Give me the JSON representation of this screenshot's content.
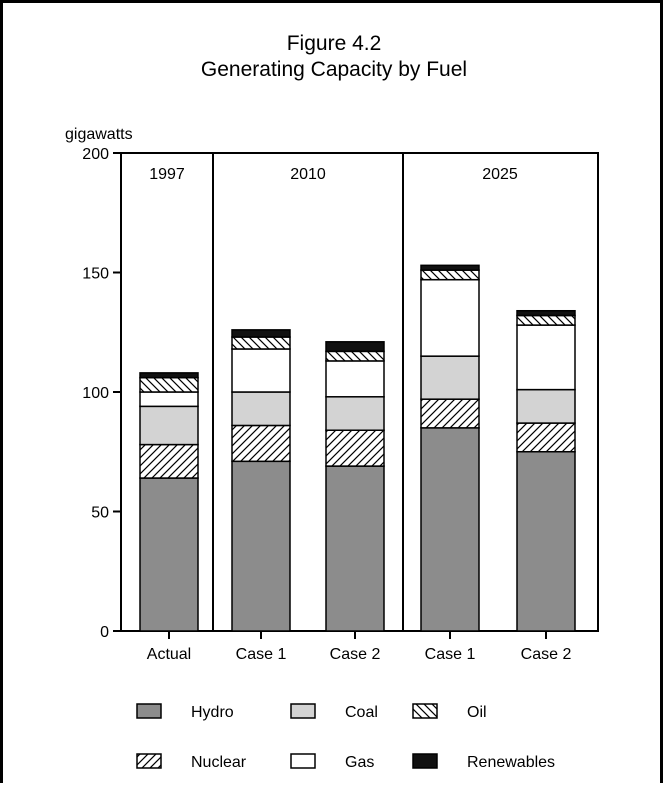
{
  "chart_data": {
    "type": "bar",
    "stacked": true,
    "title": "Figure 4.2",
    "subtitle": "Generating Capacity by Fuel",
    "ylabel": "gigawatts",
    "ylim": [
      0,
      200
    ],
    "yticks": [
      0,
      50,
      100,
      150,
      200
    ],
    "periods": [
      "1997",
      "2010",
      "2025"
    ],
    "categories": [
      "Actual",
      "Case 1",
      "Case 2",
      "Case 1",
      "Case 2"
    ],
    "category_period": [
      0,
      1,
      1,
      2,
      2
    ],
    "series": [
      {
        "name": "Hydro",
        "values": [
          64,
          71,
          69,
          85,
          75
        ],
        "color": "#8c8c8c",
        "pattern": "solid"
      },
      {
        "name": "Nuclear",
        "values": [
          14,
          15,
          15,
          12,
          12
        ],
        "color": "#ffffff",
        "pattern": "hatch-right"
      },
      {
        "name": "Coal",
        "values": [
          16,
          14,
          14,
          18,
          14
        ],
        "color": "#d3d3d3",
        "pattern": "solid"
      },
      {
        "name": "Gas",
        "values": [
          6,
          18,
          15,
          32,
          27
        ],
        "color": "#ffffff",
        "pattern": "solid"
      },
      {
        "name": "Oil",
        "values": [
          6,
          5,
          4,
          4,
          4
        ],
        "color": "#ffffff",
        "pattern": "hatch-left"
      },
      {
        "name": "Renewables",
        "values": [
          2,
          3,
          4,
          2,
          2
        ],
        "color": "#111111",
        "pattern": "solid"
      }
    ],
    "legend_order": [
      "Hydro",
      "Coal",
      "Oil",
      "Nuclear",
      "Gas",
      "Renewables"
    ],
    "grid": false,
    "legend_position": "bottom"
  }
}
